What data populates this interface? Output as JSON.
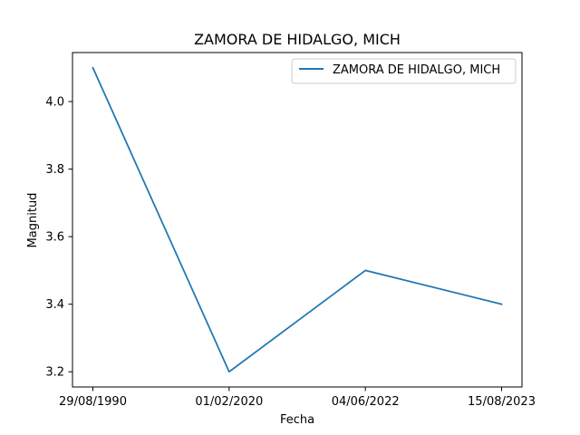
{
  "chart_data": {
    "type": "line",
    "title": "ZAMORA DE HIDALGO, MICH",
    "xlabel": "Fecha",
    "ylabel": "Magnitud",
    "categories": [
      "29/08/1990",
      "01/02/2020",
      "04/06/2022",
      "15/08/2023"
    ],
    "series": [
      {
        "name": "ZAMORA DE HIDALGO, MICH",
        "values": [
          4.1,
          3.2,
          3.5,
          3.4
        ],
        "color": "#1f77b4"
      }
    ],
    "yticks": [
      "3.2",
      "3.4",
      "3.6",
      "3.8",
      "4.0"
    ],
    "ylim": [
      3.155,
      4.145
    ],
    "grid": false,
    "legend_position": "top-right"
  }
}
